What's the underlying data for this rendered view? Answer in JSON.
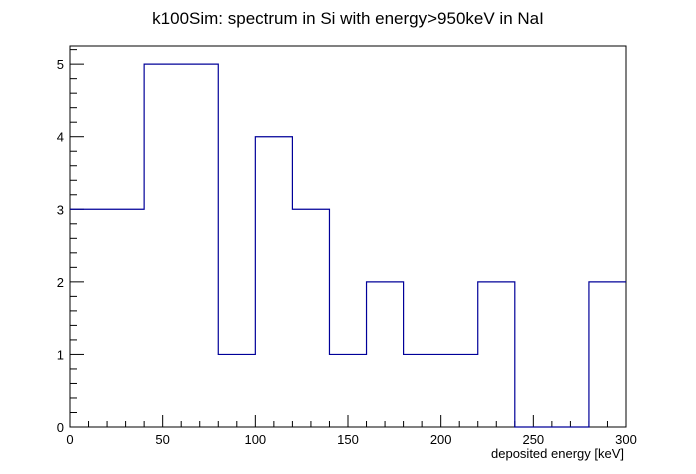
{
  "chart_data": {
    "type": "bar",
    "style": "step-histogram",
    "title": "k100Sim: spectrum in Si with energy>950keV in NaI",
    "xlabel": "deposited energy [keV]",
    "ylabel": "",
    "bin_edges": [
      0,
      20,
      40,
      60,
      80,
      100,
      120,
      140,
      160,
      180,
      200,
      220,
      240,
      260,
      280,
      300
    ],
    "values": [
      3,
      3,
      5,
      5,
      1,
      4,
      3,
      1,
      2,
      1,
      1,
      2,
      0,
      0,
      2
    ],
    "xlim": [
      0,
      300
    ],
    "ylim": [
      0,
      5.25
    ],
    "x_ticks": [
      "0",
      "50",
      "100",
      "150",
      "200",
      "250",
      "300"
    ],
    "y_ticks": [
      "0",
      "1",
      "2",
      "3",
      "4",
      "5"
    ],
    "grid": false,
    "legend": "none",
    "line_color": "#000099",
    "frame_color": "#000000"
  }
}
